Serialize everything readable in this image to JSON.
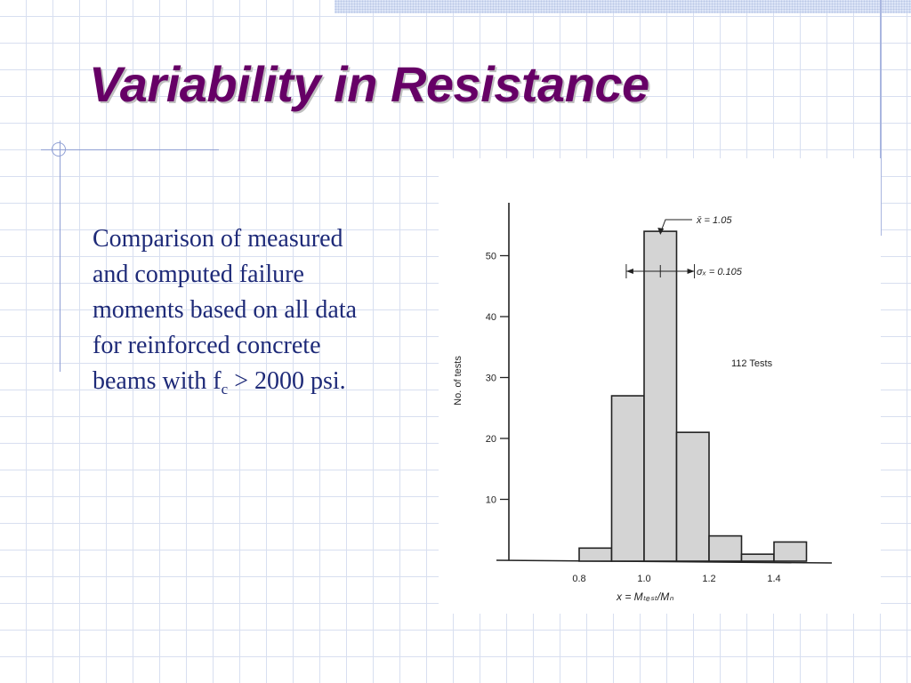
{
  "slide": {
    "title": "Variability in Resistance",
    "body_line1": "Comparison of measured",
    "body_line2": "and computed failure",
    "body_line3": "moments based on all data",
    "body_line4": "for reinforced concrete",
    "body_line5_prefix": "beams with f",
    "body_line5_sub": "c",
    "body_line5_suffix": " > 2000 psi."
  },
  "chart_data": {
    "type": "bar",
    "subtype": "histogram",
    "bin_edges": [
      0.8,
      0.9,
      1.0,
      1.1,
      1.2,
      1.3,
      1.4,
      1.5
    ],
    "values": [
      2,
      27,
      54,
      21,
      4,
      1,
      3
    ],
    "xlabel": "x = Mₜₑₛₜ/Mₙ",
    "ylabel": "No. of tests",
    "x_ticks": [
      "0.8",
      "1.0",
      "1.2",
      "1.4"
    ],
    "y_ticks": [
      "10",
      "20",
      "30",
      "40",
      "50"
    ],
    "ylim": [
      0,
      58
    ],
    "mean_label": "x̄  =  1.05",
    "mean_value": 1.05,
    "sigma_label": "σₓ  =  0.105",
    "sigma_value": 0.105,
    "annotation": "112 Tests",
    "grid": false,
    "bar_color": "#d4d4d4"
  }
}
